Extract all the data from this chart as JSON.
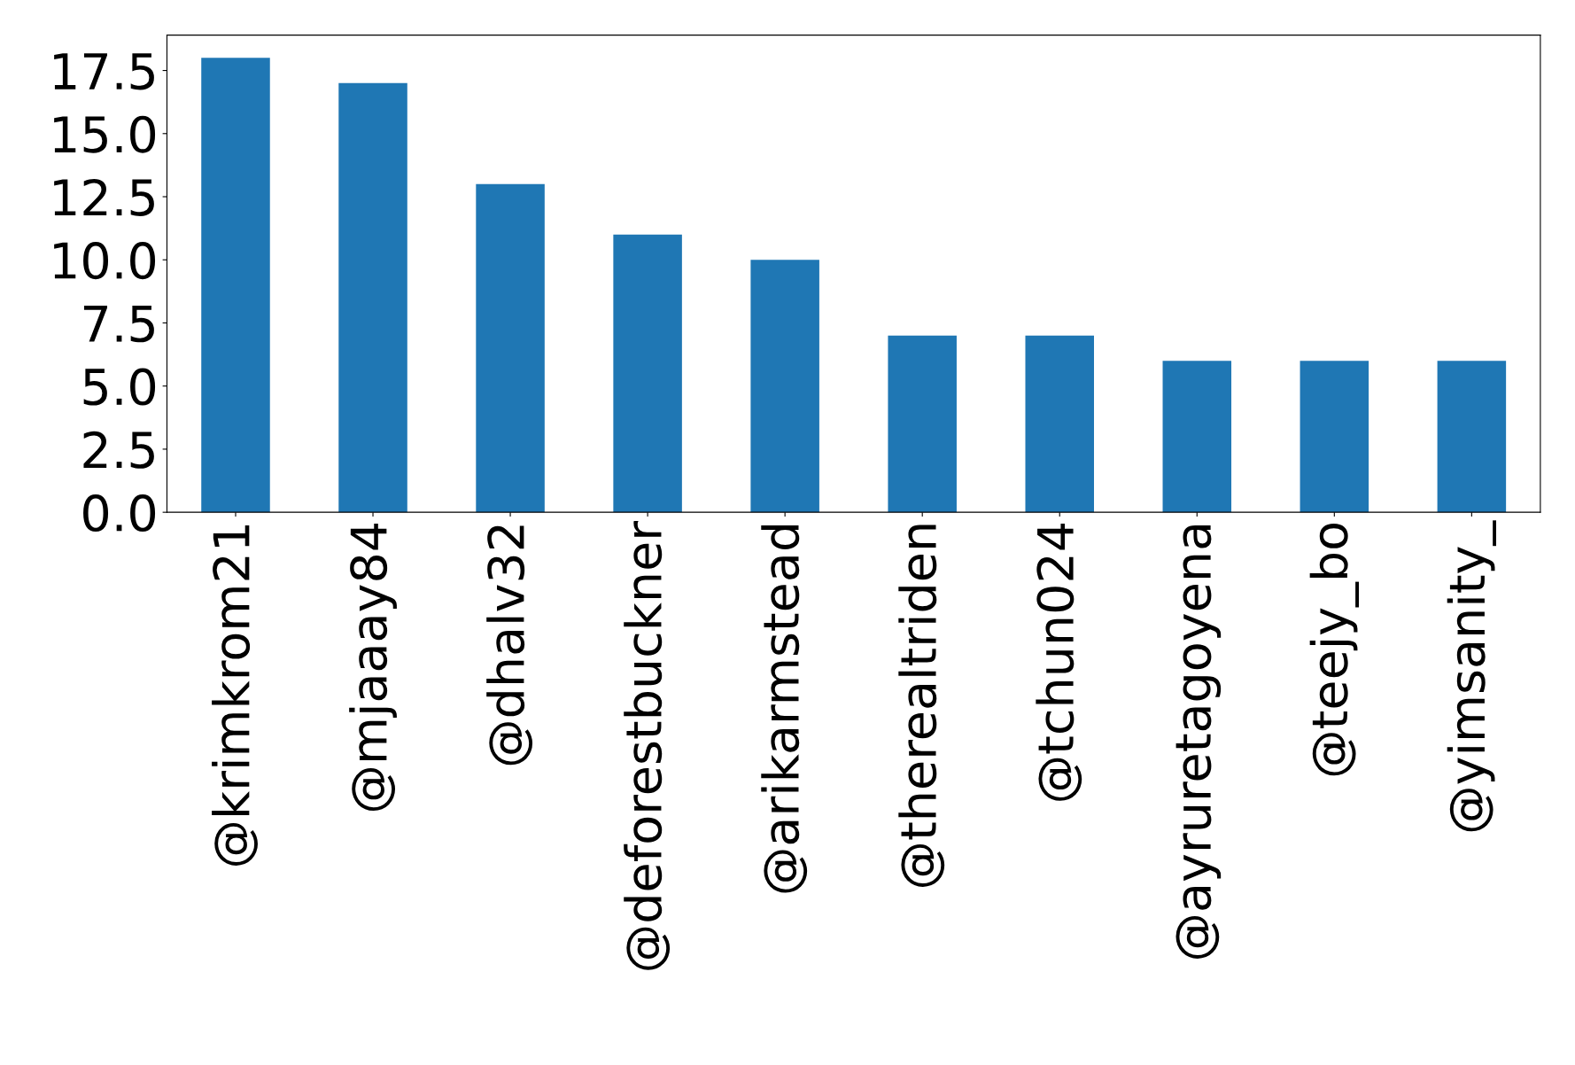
{
  "chart_data": {
    "type": "bar",
    "categories": [
      "@krimkrom21",
      "@mjaaay84",
      "@dhalv32",
      "@deforestbuckner",
      "@arikarmstead",
      "@therealtriden",
      "@tchun024",
      "@ayruretagoyena",
      "@teejy_bo",
      "@yimsanity_"
    ],
    "values": [
      18,
      17,
      13,
      11,
      10,
      7,
      7,
      6,
      6,
      6
    ],
    "color": "#1f77b4",
    "ylim": [
      0,
      18.9
    ],
    "yticks": [
      {
        "value": 0,
        "label": "0.0"
      },
      {
        "value": 2.5,
        "label": "2.5"
      },
      {
        "value": 5,
        "label": "5.0"
      },
      {
        "value": 7.5,
        "label": "7.5"
      },
      {
        "value": 10,
        "label": "10.0"
      },
      {
        "value": 12.5,
        "label": "12.5"
      },
      {
        "value": 15,
        "label": "15.0"
      },
      {
        "value": 17.5,
        "label": "17.5"
      }
    ],
    "grid": false,
    "legend": false
  }
}
